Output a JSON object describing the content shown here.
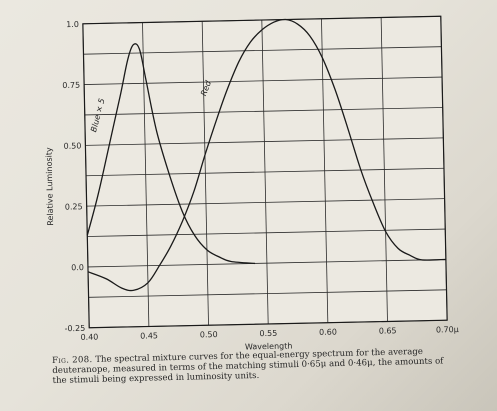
{
  "chart_data": {
    "type": "line",
    "title": "",
    "xlabel": "Wavelength",
    "ylabel": "Relative Luminosity",
    "xlim": [
      0.4,
      0.7
    ],
    "ylim": [
      -0.25,
      1.0
    ],
    "x_tick_labels": [
      "0.40",
      "0.45",
      "0.50",
      "0.55",
      "0.60",
      "0.65",
      "0.70μ"
    ],
    "y_tick_labels": [
      "1.0",
      "0.75",
      "0.50",
      "0.25",
      "0.0",
      "-0.25"
    ],
    "x_ticks": [
      0.4,
      0.45,
      0.5,
      0.55,
      0.6,
      0.65,
      0.7
    ],
    "y_ticks": [
      1.0,
      0.75,
      0.5,
      0.25,
      0.0,
      -0.25
    ],
    "grid": true,
    "series": [
      {
        "name": "Blue × 5",
        "color": "#1a1a1a",
        "points": [
          [
            0.4,
            0.13
          ],
          [
            0.41,
            0.3
          ],
          [
            0.42,
            0.5
          ],
          [
            0.43,
            0.7
          ],
          [
            0.437,
            0.85
          ],
          [
            0.442,
            0.91
          ],
          [
            0.447,
            0.89
          ],
          [
            0.452,
            0.76
          ],
          [
            0.46,
            0.55
          ],
          [
            0.47,
            0.37
          ],
          [
            0.48,
            0.22
          ],
          [
            0.49,
            0.12
          ],
          [
            0.5,
            0.06
          ],
          [
            0.51,
            0.03
          ],
          [
            0.52,
            0.01
          ],
          [
            0.54,
            0.0
          ]
        ]
      },
      {
        "name": "Red",
        "color": "#1a1a1a",
        "points": [
          [
            0.4,
            -0.02
          ],
          [
            0.415,
            -0.05
          ],
          [
            0.428,
            -0.09
          ],
          [
            0.438,
            -0.1
          ],
          [
            0.45,
            -0.07
          ],
          [
            0.46,
            0.0
          ],
          [
            0.47,
            0.08
          ],
          [
            0.48,
            0.18
          ],
          [
            0.49,
            0.3
          ],
          [
            0.5,
            0.45
          ],
          [
            0.51,
            0.59
          ],
          [
            0.52,
            0.72
          ],
          [
            0.53,
            0.83
          ],
          [
            0.54,
            0.91
          ],
          [
            0.55,
            0.96
          ],
          [
            0.56,
            0.99
          ],
          [
            0.57,
            1.0
          ],
          [
            0.58,
            0.98
          ],
          [
            0.59,
            0.93
          ],
          [
            0.6,
            0.84
          ],
          [
            0.61,
            0.71
          ],
          [
            0.62,
            0.55
          ],
          [
            0.63,
            0.38
          ],
          [
            0.64,
            0.24
          ],
          [
            0.65,
            0.12
          ],
          [
            0.66,
            0.05
          ],
          [
            0.67,
            0.02
          ],
          [
            0.68,
            0.0
          ],
          [
            0.7,
            0.0
          ]
        ]
      }
    ]
  },
  "labels": {
    "blue_curve": "Blue × 5",
    "red_curve": "Red"
  },
  "caption": {
    "figure_number": "Fig. 208.",
    "text": "The spectral mixture curves for the equal-energy spectrum for the average deuteranope, measured in terms of the matching stimuli 0·65μ and 0·46μ, the amounts of the stimuli being expressed in luminosity units."
  },
  "colors": {
    "paper": "#e8e5dc",
    "ink": "#1a1a1a",
    "grid": "#2b2b2b"
  }
}
